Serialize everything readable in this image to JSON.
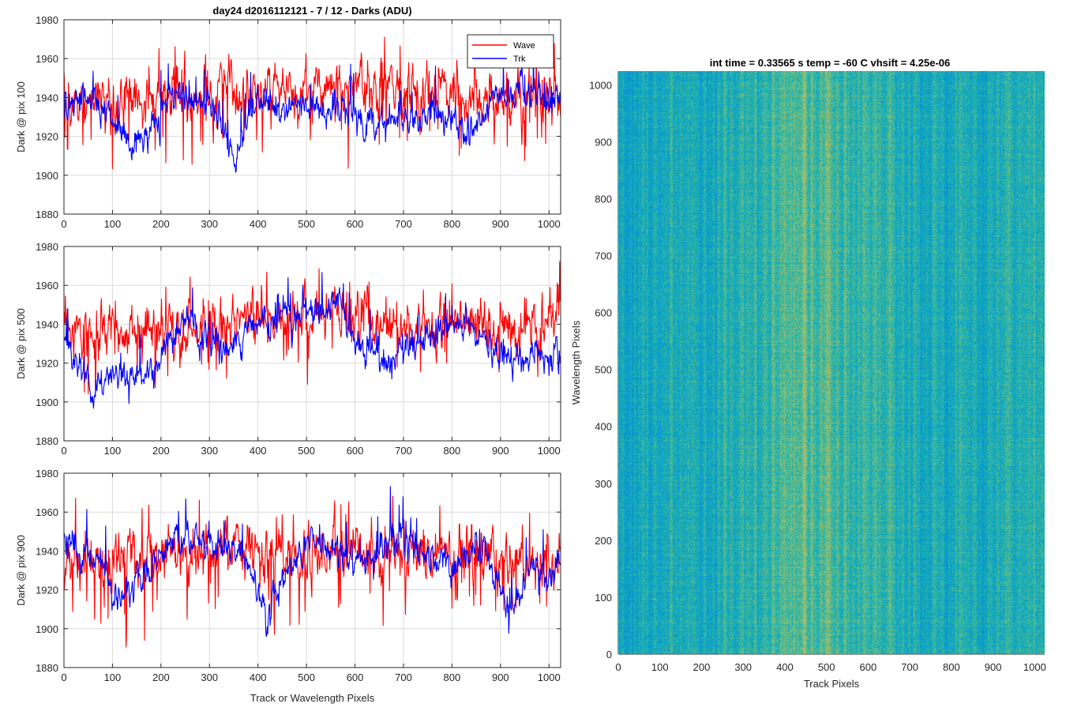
{
  "chart_data": [
    {
      "type": "line",
      "title": "day24 d2016112121 - 7 / 12 - Darks (ADU)",
      "xlabel": "",
      "ylabel": "Dark @ pix 100",
      "xlim": [
        0,
        1024
      ],
      "ylim": [
        1880,
        1980
      ],
      "xticks": [
        0,
        100,
        200,
        300,
        400,
        500,
        600,
        700,
        800,
        900,
        1000
      ],
      "yticks": [
        1880,
        1900,
        1920,
        1940,
        1960,
        1980
      ],
      "grid": true,
      "legend": "top-right",
      "series": [
        {
          "name": "Wave",
          "color": "#ff0000",
          "mean": 1940,
          "noise": 8,
          "spike_down_prob": 0.05,
          "trend": [
            [
              0,
              1938
            ],
            [
              200,
              1940
            ],
            [
              400,
              1943
            ],
            [
              500,
              1944
            ],
            [
              600,
              1944
            ],
            [
              700,
              1943
            ],
            [
              900,
              1940
            ],
            [
              1024,
              1940
            ]
          ]
        },
        {
          "name": "Trk",
          "color": "#0000ff",
          "mean": 1935,
          "noise": 5,
          "spike_down_prob": 0.0,
          "trend": [
            [
              0,
              1932
            ],
            [
              40,
              1942
            ],
            [
              80,
              1938
            ],
            [
              120,
              1920
            ],
            [
              150,
              1915
            ],
            [
              180,
              1925
            ],
            [
              220,
              1940
            ],
            [
              280,
              1938
            ],
            [
              320,
              1930
            ],
            [
              340,
              1915
            ],
            [
              355,
              1905
            ],
            [
              370,
              1925
            ],
            [
              400,
              1938
            ],
            [
              450,
              1935
            ],
            [
              500,
              1935
            ],
            [
              550,
              1935
            ],
            [
              600,
              1930
            ],
            [
              650,
              1928
            ],
            [
              700,
              1930
            ],
            [
              760,
              1933
            ],
            [
              800,
              1928
            ],
            [
              830,
              1918
            ],
            [
              860,
              1930
            ],
            [
              900,
              1940
            ],
            [
              950,
              1942
            ],
            [
              1000,
              1940
            ],
            [
              1024,
              1938
            ]
          ]
        }
      ]
    },
    {
      "type": "line",
      "title": "",
      "xlabel": "",
      "ylabel": "Dark @ pix 500",
      "xlim": [
        0,
        1024
      ],
      "ylim": [
        1880,
        1980
      ],
      "xticks": [
        0,
        100,
        200,
        300,
        400,
        500,
        600,
        700,
        800,
        900,
        1000
      ],
      "yticks": [
        1880,
        1900,
        1920,
        1940,
        1960,
        1980
      ],
      "grid": true,
      "series": [
        {
          "name": "Wave",
          "color": "#ff0000",
          "mean": 1938,
          "noise": 8,
          "spike_down_prob": 0.05,
          "trend": [
            [
              0,
              1935
            ],
            [
              200,
              1935
            ],
            [
              300,
              1940
            ],
            [
              400,
              1945
            ],
            [
              500,
              1945
            ],
            [
              600,
              1944
            ],
            [
              700,
              1940
            ],
            [
              900,
              1938
            ],
            [
              1024,
              1940
            ]
          ]
        },
        {
          "name": "Trk",
          "color": "#0000ff",
          "mean": 1930,
          "noise": 5,
          "spike_down_prob": 0.0,
          "trend": [
            [
              0,
              1932
            ],
            [
              30,
              1918
            ],
            [
              60,
              1905
            ],
            [
              100,
              1915
            ],
            [
              150,
              1912
            ],
            [
              180,
              1910
            ],
            [
              220,
              1930
            ],
            [
              250,
              1945
            ],
            [
              300,
              1930
            ],
            [
              340,
              1925
            ],
            [
              400,
              1940
            ],
            [
              450,
              1945
            ],
            [
              500,
              1945
            ],
            [
              560,
              1950
            ],
            [
              620,
              1928
            ],
            [
              680,
              1920
            ],
            [
              720,
              1930
            ],
            [
              800,
              1940
            ],
            [
              830,
              1945
            ],
            [
              880,
              1925
            ],
            [
              920,
              1920
            ],
            [
              970,
              1925
            ],
            [
              1024,
              1925
            ]
          ]
        }
      ]
    },
    {
      "type": "line",
      "title": "",
      "xlabel": "Track or Wavelength Pixels",
      "ylabel": "Dark @ pix 900",
      "xlim": [
        0,
        1024
      ],
      "ylim": [
        1880,
        1980
      ],
      "xticks": [
        0,
        100,
        200,
        300,
        400,
        500,
        600,
        700,
        800,
        900,
        1000
      ],
      "yticks": [
        1880,
        1900,
        1920,
        1940,
        1960,
        1980
      ],
      "grid": true,
      "series": [
        {
          "name": "Wave",
          "color": "#ff0000",
          "mean": 1937,
          "noise": 8,
          "spike_down_prob": 0.05,
          "trend": [
            [
              0,
              1935
            ],
            [
              200,
              1938
            ],
            [
              400,
              1940
            ],
            [
              600,
              1940
            ],
            [
              800,
              1938
            ],
            [
              1024,
              1937
            ]
          ]
        },
        {
          "name": "Trk",
          "color": "#0000ff",
          "mean": 1938,
          "noise": 5,
          "spike_down_prob": 0.0,
          "trend": [
            [
              0,
              1945
            ],
            [
              40,
              1940
            ],
            [
              80,
              1930
            ],
            [
              120,
              1915
            ],
            [
              160,
              1930
            ],
            [
              220,
              1945
            ],
            [
              300,
              1945
            ],
            [
              360,
              1940
            ],
            [
              400,
              1920
            ],
            [
              420,
              1905
            ],
            [
              450,
              1925
            ],
            [
              500,
              1945
            ],
            [
              560,
              1940
            ],
            [
              600,
              1932
            ],
            [
              650,
              1940
            ],
            [
              700,
              1950
            ],
            [
              750,
              1938
            ],
            [
              800,
              1930
            ],
            [
              850,
              1942
            ],
            [
              900,
              1920
            ],
            [
              920,
              1910
            ],
            [
              960,
              1930
            ],
            [
              1000,
              1925
            ],
            [
              1024,
              1935
            ]
          ]
        }
      ]
    },
    {
      "type": "heatmap",
      "title": "int time = 0.33565 s    temp = -60 C    vhsift = 4.25e-06",
      "xlabel": "Track Pixels",
      "ylabel": "Wavelength Pixels",
      "xlim": [
        0,
        1024
      ],
      "ylim": [
        0,
        1024
      ],
      "xticks": [
        0,
        100,
        200,
        300,
        400,
        500,
        600,
        700,
        800,
        900,
        1000
      ],
      "yticks": [
        0,
        100,
        200,
        300,
        400,
        500,
        600,
        700,
        800,
        900,
        1000
      ],
      "colormap": "parula",
      "vertical_lines": {
        "color": "#0000cc",
        "x": [
          100,
          500,
          900
        ]
      },
      "horizontal_lines": {
        "color": "#dd0000",
        "y": [
          100,
          500,
          900
        ]
      }
    }
  ]
}
